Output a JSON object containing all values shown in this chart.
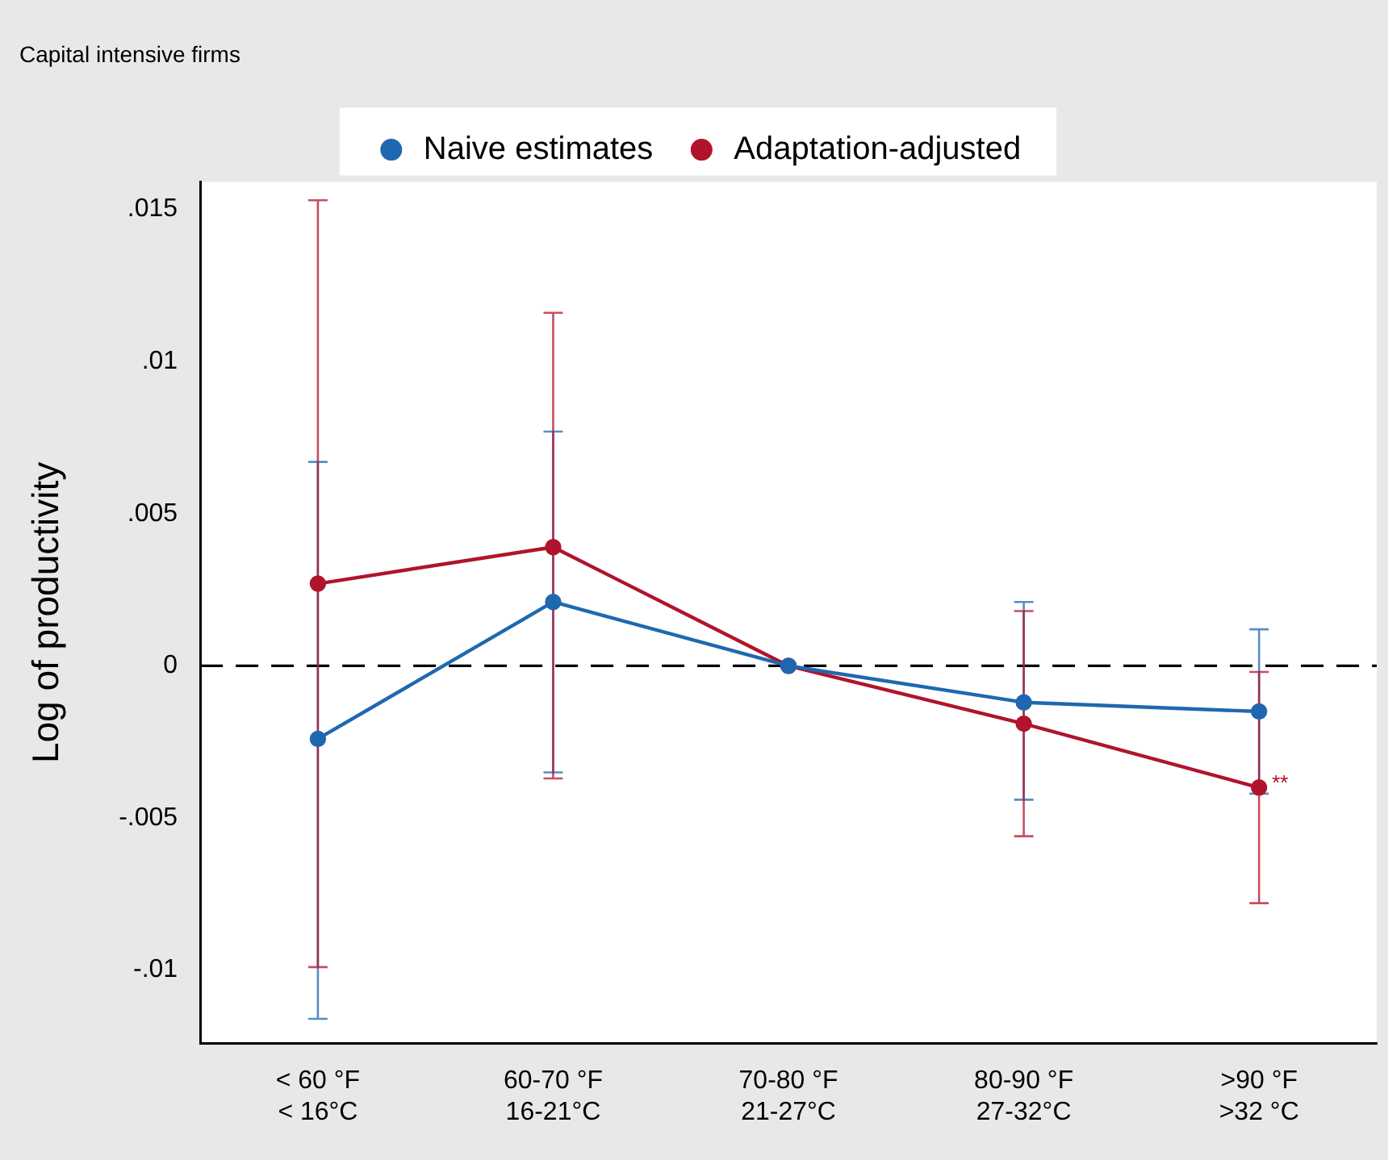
{
  "chart_data": {
    "type": "line",
    "title": "Capital intensive firms",
    "ylabel": "Log of productivity",
    "categories": [
      "< 60 °F\n< 16°C",
      "60-70 °F\n16-21°C",
      "70-80 °F\n21-27°C",
      "80-90 °F\n27-32°C",
      ">90 °F\n>32 °C"
    ],
    "series": [
      {
        "name": "Naive estimates",
        "color": "#1f68b0",
        "values": [
          -0.0024,
          0.0021,
          0,
          -0.0012,
          -0.0015
        ],
        "errors": [
          [
            -0.0116,
            0.0067
          ],
          [
            -0.0035,
            0.0077
          ],
          null,
          [
            -0.0044,
            0.0021
          ],
          [
            -0.0042,
            0.0012
          ]
        ]
      },
      {
        "name": "Adaptation-adjusted",
        "color": "#b0142c",
        "values": [
          0.0027,
          0.0039,
          0,
          -0.0019,
          -0.004
        ],
        "errors": [
          [
            -0.0099,
            0.0153
          ],
          [
            -0.0037,
            0.0116
          ],
          null,
          [
            -0.0056,
            0.0018
          ],
          [
            -0.0078,
            -0.0002
          ]
        ]
      }
    ],
    "ylim": [
      -0.0124,
      0.0159
    ],
    "yticks": [
      {
        "value": 0.015,
        "label": ".015"
      },
      {
        "value": 0.01,
        "label": ".01"
      },
      {
        "value": 0.005,
        "label": ".005"
      },
      {
        "value": 0,
        "label": "0"
      },
      {
        "value": -0.005,
        "label": "-.005"
      },
      {
        "value": -0.01,
        "label": "-.01"
      }
    ],
    "ref_lines": [
      {
        "axis": "y",
        "value": 0,
        "color": "#000000",
        "line_style": "dashed"
      }
    ],
    "annotations": [
      {
        "text": "**",
        "x": ">90 °F\n>32 °C",
        "y": -0.004
      }
    ],
    "legend": "top",
    "grid": false,
    "marker": "circle",
    "line_style": "solid"
  }
}
